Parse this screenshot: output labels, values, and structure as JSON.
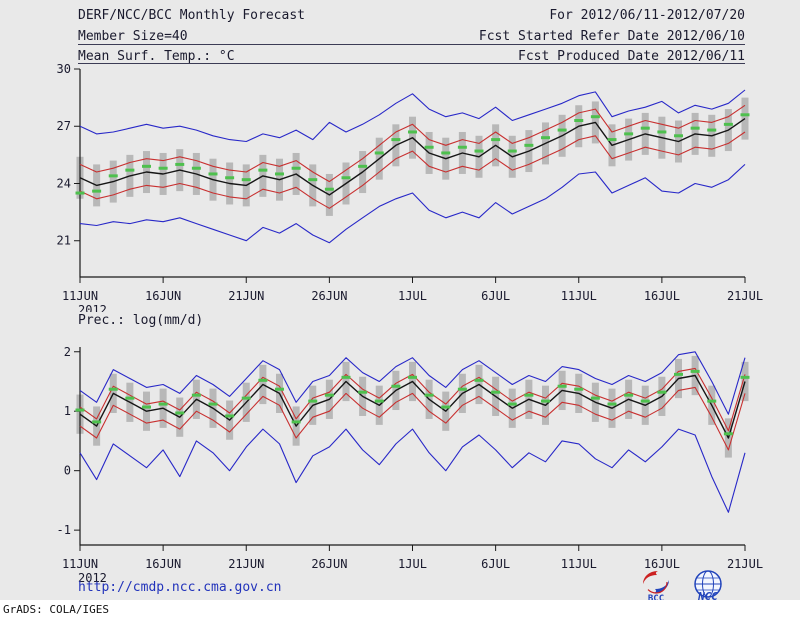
{
  "header": {
    "title": "DERF/NCC/BCC Monthly Forecast",
    "period": "For 2012/06/11-2012/07/20",
    "member_size": "Member Size=40",
    "refer_date": "Fcst Started Refer Date 2012/06/10",
    "variable": "Mean Surf. Temp.: °C",
    "produced_date": "Fcst Produced Date 2012/06/11"
  },
  "footer": {
    "url": "http://cmdp.ncc.cma.gov.cn",
    "grads_credit": "GrADS: COLA/IGES",
    "bcc_logo_text": "BCC",
    "ncc_logo_text": "NCC"
  },
  "colors": {
    "background": "#e9e9e9",
    "text": "#1a1a2e",
    "axis": "#1a1a1a",
    "url_blue": "#2233bb",
    "envelope_blue": "#2828c8",
    "bound_red": "#c83030",
    "mean_black": "#161616",
    "obs_green": "#4ec04e",
    "spread_gray": "#b8b8b8"
  },
  "chart_data": [
    {
      "type": "line",
      "title": "Mean Surf. Temp.: °C",
      "xlabel": "",
      "ylabel": "°C",
      "ylim": [
        19.1,
        30
      ],
      "xlim": [
        0,
        40
      ],
      "yticks": [
        21,
        24,
        27,
        30
      ],
      "n_points": 41,
      "x_tick_positions": [
        0,
        5,
        10,
        15,
        20,
        25,
        30,
        35,
        40
      ],
      "x_tick_labels": [
        "11JUN",
        "16JUN",
        "21JUN",
        "26JUN",
        "1JUL",
        "6JUL",
        "11JUL",
        "16JUL",
        "21JUL"
      ],
      "year_label": "2012",
      "grid": false,
      "legend": "none",
      "series": [
        {
          "name": "ensemble-spread",
          "type": "range-bar",
          "color": "#b8b8b8",
          "low": [
            23.2,
            22.8,
            23.0,
            23.3,
            23.5,
            23.4,
            23.6,
            23.4,
            23.1,
            22.9,
            22.8,
            23.3,
            23.1,
            23.4,
            22.8,
            22.3,
            22.9,
            23.5,
            24.2,
            24.9,
            25.3,
            24.5,
            24.2,
            24.5,
            24.3,
            24.9,
            24.3,
            24.6,
            25.0,
            25.4,
            25.9,
            26.1,
            24.9,
            25.2,
            25.5,
            25.3,
            25.1,
            25.5,
            25.4,
            25.7,
            26.3
          ],
          "high": [
            25.4,
            25.0,
            25.2,
            25.5,
            25.7,
            25.6,
            25.8,
            25.6,
            25.3,
            25.1,
            25.0,
            25.5,
            25.3,
            25.6,
            25.0,
            24.5,
            25.1,
            25.7,
            26.4,
            27.1,
            27.5,
            26.7,
            26.4,
            26.7,
            26.5,
            27.1,
            26.5,
            26.8,
            27.2,
            27.6,
            28.1,
            28.3,
            27.1,
            27.4,
            27.7,
            27.5,
            27.3,
            27.7,
            27.6,
            27.9,
            28.5
          ]
        },
        {
          "name": "envelope-max",
          "type": "line",
          "color": "#2828c8",
          "values": [
            27.0,
            26.6,
            26.7,
            26.9,
            27.1,
            26.9,
            27.0,
            26.8,
            26.5,
            26.3,
            26.2,
            26.6,
            26.4,
            26.8,
            26.3,
            27.2,
            26.7,
            27.1,
            27.6,
            28.2,
            28.7,
            27.9,
            27.5,
            27.7,
            27.4,
            28.0,
            27.3,
            27.6,
            27.9,
            28.2,
            28.6,
            28.8,
            27.5,
            27.8,
            28.0,
            28.3,
            27.7,
            28.1,
            27.9,
            28.2,
            28.9
          ]
        },
        {
          "name": "envelope-min",
          "type": "line",
          "color": "#2828c8",
          "values": [
            21.9,
            21.8,
            22.0,
            21.9,
            22.1,
            22.0,
            22.2,
            21.9,
            21.6,
            21.3,
            21.0,
            21.7,
            21.4,
            21.9,
            21.3,
            20.9,
            21.6,
            22.2,
            22.8,
            23.2,
            23.5,
            22.6,
            22.2,
            22.5,
            22.2,
            23.0,
            22.4,
            22.8,
            23.2,
            23.8,
            24.5,
            24.6,
            23.5,
            23.9,
            24.3,
            23.6,
            23.5,
            24.0,
            23.8,
            24.2,
            25.0
          ]
        },
        {
          "name": "upper-bound",
          "type": "line",
          "color": "#c83030",
          "values": [
            25.0,
            24.6,
            24.8,
            25.1,
            25.3,
            25.2,
            25.4,
            25.2,
            24.9,
            24.7,
            24.6,
            25.1,
            24.9,
            25.2,
            24.6,
            24.1,
            24.7,
            25.3,
            26.0,
            26.7,
            27.1,
            26.3,
            26.0,
            26.3,
            26.1,
            26.7,
            26.1,
            26.4,
            26.8,
            27.2,
            27.7,
            27.9,
            26.7,
            27.0,
            27.3,
            27.1,
            26.9,
            27.3,
            27.2,
            27.5,
            28.1
          ]
        },
        {
          "name": "lower-bound",
          "type": "line",
          "color": "#c83030",
          "values": [
            23.6,
            23.2,
            23.4,
            23.7,
            23.9,
            23.8,
            24.0,
            23.8,
            23.5,
            23.3,
            23.2,
            23.7,
            23.5,
            23.8,
            23.2,
            22.7,
            23.3,
            23.9,
            24.6,
            25.3,
            25.7,
            24.9,
            24.6,
            24.9,
            24.7,
            25.3,
            24.7,
            25.0,
            25.4,
            25.8,
            26.3,
            26.5,
            25.3,
            25.6,
            25.9,
            25.7,
            25.5,
            25.9,
            25.8,
            26.1,
            26.7
          ]
        },
        {
          "name": "ensemble-mean",
          "type": "line",
          "color": "#161616",
          "values": [
            24.3,
            23.9,
            24.1,
            24.4,
            24.6,
            24.5,
            24.7,
            24.5,
            24.2,
            24.0,
            23.9,
            24.4,
            24.2,
            24.5,
            23.9,
            23.4,
            24.0,
            24.6,
            25.3,
            26.0,
            26.4,
            25.6,
            25.3,
            25.6,
            25.4,
            26.0,
            25.4,
            25.7,
            26.1,
            26.5,
            27.0,
            27.2,
            26.0,
            26.3,
            26.6,
            26.4,
            26.2,
            26.6,
            26.5,
            26.8,
            27.4
          ]
        },
        {
          "name": "highlight-dashes",
          "type": "dash-marks",
          "color": "#4ec04e",
          "values": [
            23.5,
            23.6,
            24.4,
            24.7,
            24.9,
            24.8,
            25.0,
            24.8,
            24.5,
            24.3,
            24.2,
            24.7,
            24.5,
            24.8,
            24.2,
            23.7,
            24.3,
            24.9,
            25.6,
            26.3,
            26.7,
            25.9,
            25.6,
            25.9,
            25.7,
            26.3,
            25.7,
            26.0,
            26.4,
            26.8,
            27.3,
            27.5,
            26.3,
            26.6,
            26.9,
            26.7,
            26.5,
            26.9,
            26.8,
            27.1,
            27.6
          ]
        }
      ]
    },
    {
      "type": "line",
      "title": "Prec.: log(mm/d)",
      "xlabel": "",
      "ylabel": "log(mm/d)",
      "ylim": [
        -1.25,
        2.08
      ],
      "xlim": [
        0,
        40
      ],
      "yticks": [
        -1,
        0,
        1,
        2
      ],
      "n_points": 41,
      "x_tick_positions": [
        0,
        5,
        10,
        15,
        20,
        25,
        30,
        35,
        40
      ],
      "x_tick_labels": [
        "11JUN",
        "16JUN",
        "21JUN",
        "26JUN",
        "1JUL",
        "6JUL",
        "11JUL",
        "16JUL",
        "21JUL"
      ],
      "year_label": "2012",
      "grid": false,
      "legend": "none",
      "series": [
        {
          "name": "ensemble-spread",
          "type": "range-bar",
          "color": "#b8b8b8",
          "low": [
            0.62,
            0.42,
            0.97,
            0.82,
            0.67,
            0.72,
            0.57,
            0.87,
            0.72,
            0.52,
            0.82,
            1.12,
            0.97,
            0.42,
            0.77,
            0.87,
            1.17,
            0.92,
            0.77,
            1.02,
            1.17,
            0.87,
            0.67,
            0.97,
            1.12,
            0.92,
            0.72,
            0.87,
            0.77,
            1.02,
            0.97,
            0.82,
            0.72,
            0.87,
            0.77,
            0.92,
            1.22,
            1.27,
            0.77,
            0.22,
            1.17
          ],
          "high": [
            1.28,
            1.08,
            1.63,
            1.48,
            1.33,
            1.38,
            1.23,
            1.53,
            1.38,
            1.18,
            1.48,
            1.78,
            1.63,
            1.08,
            1.43,
            1.53,
            1.83,
            1.58,
            1.43,
            1.68,
            1.83,
            1.53,
            1.33,
            1.63,
            1.78,
            1.58,
            1.38,
            1.53,
            1.43,
            1.68,
            1.63,
            1.48,
            1.38,
            1.53,
            1.43,
            1.58,
            1.88,
            1.93,
            1.43,
            0.88,
            1.83
          ]
        },
        {
          "name": "envelope-max",
          "type": "line",
          "color": "#2828c8",
          "values": [
            1.35,
            1.15,
            1.7,
            1.55,
            1.4,
            1.45,
            1.3,
            1.6,
            1.45,
            1.25,
            1.55,
            1.85,
            1.7,
            1.15,
            1.5,
            1.6,
            1.9,
            1.65,
            1.5,
            1.75,
            1.9,
            1.6,
            1.4,
            1.7,
            1.85,
            1.65,
            1.45,
            1.6,
            1.5,
            1.75,
            1.7,
            1.55,
            1.45,
            1.6,
            1.5,
            1.65,
            1.95,
            2.0,
            1.5,
            0.95,
            1.9
          ]
        },
        {
          "name": "envelope-min",
          "type": "line",
          "color": "#2828c8",
          "values": [
            0.3,
            -0.15,
            0.45,
            0.25,
            0.05,
            0.35,
            -0.1,
            0.5,
            0.3,
            0.0,
            0.4,
            0.7,
            0.45,
            -0.2,
            0.25,
            0.4,
            0.7,
            0.35,
            0.1,
            0.45,
            0.7,
            0.3,
            0.0,
            0.4,
            0.6,
            0.35,
            0.05,
            0.3,
            0.15,
            0.5,
            0.45,
            0.2,
            0.05,
            0.35,
            0.15,
            0.4,
            0.7,
            0.6,
            -0.1,
            -0.7,
            0.3
          ]
        },
        {
          "name": "upper-bound",
          "type": "line",
          "color": "#c83030",
          "values": [
            1.07,
            0.87,
            1.42,
            1.27,
            1.12,
            1.17,
            1.02,
            1.32,
            1.17,
            0.97,
            1.27,
            1.57,
            1.42,
            0.87,
            1.22,
            1.32,
            1.62,
            1.37,
            1.22,
            1.47,
            1.62,
            1.32,
            1.12,
            1.42,
            1.57,
            1.37,
            1.17,
            1.32,
            1.22,
            1.47,
            1.42,
            1.27,
            1.17,
            1.32,
            1.22,
            1.37,
            1.67,
            1.72,
            1.22,
            0.67,
            1.62
          ]
        },
        {
          "name": "lower-bound",
          "type": "line",
          "color": "#c83030",
          "values": [
            0.75,
            0.55,
            1.1,
            0.95,
            0.8,
            0.85,
            0.7,
            1.0,
            0.85,
            0.65,
            0.95,
            1.25,
            1.1,
            0.55,
            0.9,
            1.0,
            1.3,
            1.05,
            0.9,
            1.15,
            1.3,
            1.0,
            0.8,
            1.1,
            1.25,
            1.05,
            0.85,
            1.0,
            0.9,
            1.15,
            1.1,
            0.95,
            0.85,
            1.0,
            0.9,
            1.05,
            1.35,
            1.4,
            0.9,
            0.35,
            1.3
          ]
        },
        {
          "name": "ensemble-mean",
          "type": "line",
          "color": "#161616",
          "values": [
            0.95,
            0.75,
            1.3,
            1.15,
            1.0,
            1.05,
            0.9,
            1.2,
            1.05,
            0.85,
            1.15,
            1.45,
            1.3,
            0.75,
            1.1,
            1.2,
            1.5,
            1.25,
            1.1,
            1.35,
            1.5,
            1.2,
            1.0,
            1.3,
            1.45,
            1.25,
            1.05,
            1.2,
            1.1,
            1.35,
            1.3,
            1.15,
            1.05,
            1.2,
            1.1,
            1.25,
            1.55,
            1.6,
            1.1,
            0.55,
            1.5
          ]
        },
        {
          "name": "highlight-dashes",
          "type": "dash-marks",
          "color": "#4ec04e",
          "values": [
            1.02,
            0.82,
            1.37,
            1.22,
            1.07,
            1.12,
            0.97,
            1.27,
            1.12,
            0.92,
            1.22,
            1.52,
            1.37,
            0.82,
            1.17,
            1.27,
            1.57,
            1.32,
            1.17,
            1.42,
            1.57,
            1.27,
            1.07,
            1.37,
            1.52,
            1.32,
            1.12,
            1.27,
            1.17,
            1.42,
            1.37,
            1.22,
            1.12,
            1.27,
            1.17,
            1.32,
            1.62,
            1.67,
            1.17,
            0.62,
            1.57
          ]
        }
      ]
    }
  ]
}
